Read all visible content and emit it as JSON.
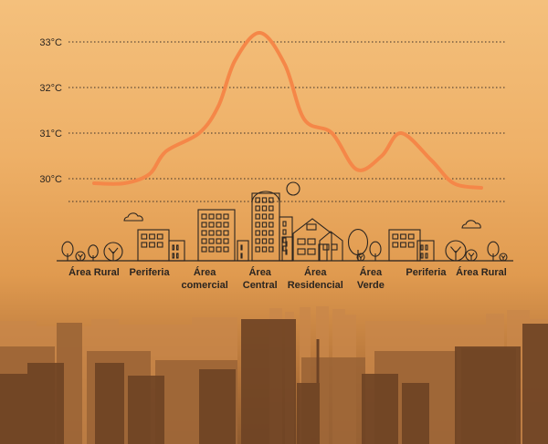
{
  "chart_data": {
    "type": "line",
    "title": "",
    "xlabel": "",
    "ylabel": "",
    "ylim": [
      29.5,
      33
    ],
    "y_ticks": [
      "30°C",
      "31°C",
      "32°C",
      "33°C"
    ],
    "y_tick_values": [
      30,
      31,
      32,
      33
    ],
    "categories": [
      {
        "line1": "Área Rural",
        "line2": ""
      },
      {
        "line1": "Periferia",
        "line2": ""
      },
      {
        "line1": "Área",
        "line2": "comercial"
      },
      {
        "line1": "Área",
        "line2": "Central"
      },
      {
        "line1": "Área",
        "line2": "Residencial"
      },
      {
        "line1": "Área",
        "line2": "Verde"
      },
      {
        "line1": "Periferia",
        "line2": ""
      },
      {
        "line1": "Área Rural",
        "line2": ""
      }
    ],
    "series": [
      {
        "values_points": [
          {
            "x": 0.0,
            "y": 29.9
          },
          {
            "x": 0.55,
            "y": 29.9
          },
          {
            "x": 1.0,
            "y": 30.1
          },
          {
            "x": 1.3,
            "y": 30.6
          },
          {
            "x": 1.9,
            "y": 31.0
          },
          {
            "x": 2.25,
            "y": 31.6
          },
          {
            "x": 2.55,
            "y": 32.6
          },
          {
            "x": 3.0,
            "y": 33.2
          },
          {
            "x": 3.45,
            "y": 32.5
          },
          {
            "x": 3.8,
            "y": 31.3
          },
          {
            "x": 4.3,
            "y": 31.0
          },
          {
            "x": 4.75,
            "y": 30.2
          },
          {
            "x": 5.2,
            "y": 30.5
          },
          {
            "x": 5.55,
            "y": 31.0
          },
          {
            "x": 6.1,
            "y": 30.4
          },
          {
            "x": 6.5,
            "y": 29.9
          },
          {
            "x": 7.0,
            "y": 29.8
          }
        ]
      }
    ],
    "grid": true,
    "colors": {
      "line": "#f58748",
      "grid": "#3a2f28",
      "ink": "#2b2520"
    }
  }
}
